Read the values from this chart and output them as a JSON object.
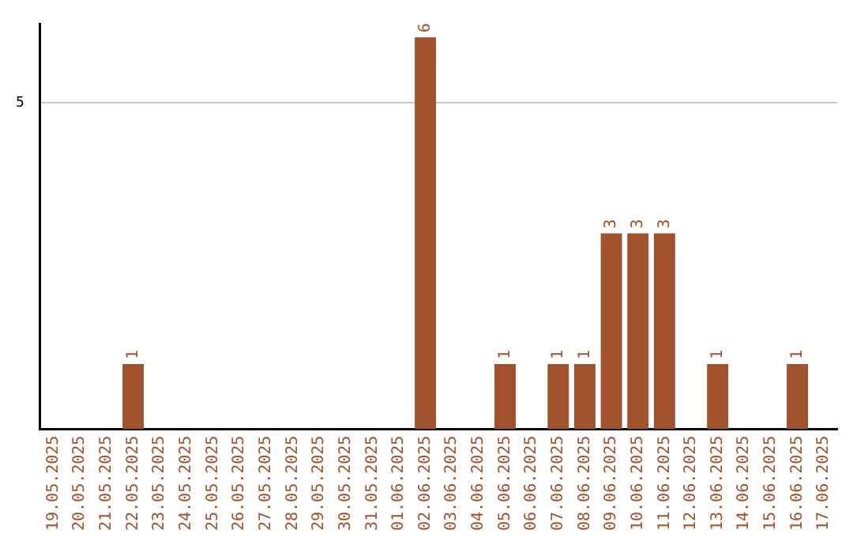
{
  "chart_data": {
    "type": "bar",
    "categories": [
      "19.05.2025",
      "20.05.2025",
      "21.05.2025",
      "22.05.2025",
      "23.05.2025",
      "24.05.2025",
      "25.05.2025",
      "26.05.2025",
      "27.05.2025",
      "28.05.2025",
      "29.05.2025",
      "30.05.2025",
      "31.05.2025",
      "01.06.2025",
      "02.06.2025",
      "03.06.2025",
      "04.06.2025",
      "05.06.2025",
      "06.06.2025",
      "07.06.2025",
      "08.06.2025",
      "09.06.2025",
      "10.06.2025",
      "11.06.2025",
      "12.06.2025",
      "13.06.2025",
      "14.06.2025",
      "15.06.2025",
      "16.06.2025",
      "17.06.2025"
    ],
    "values": [
      0,
      0,
      0,
      1,
      0,
      0,
      0,
      0,
      0,
      0,
      0,
      0,
      0,
      0,
      6,
      0,
      0,
      1,
      0,
      1,
      1,
      3,
      3,
      3,
      0,
      1,
      0,
      0,
      1,
      0
    ],
    "value_labels": [
      null,
      null,
      null,
      "1",
      null,
      null,
      null,
      null,
      null,
      null,
      null,
      null,
      null,
      null,
      "6",
      null,
      null,
      "1",
      null,
      "1",
      "1",
      "3",
      "3",
      "3",
      null,
      "1",
      null,
      null,
      "1",
      null
    ],
    "color": "#a0522d",
    "ylim": [
      0,
      6.2
    ],
    "yticks": [
      5
    ],
    "grid": "y",
    "legend": false
  }
}
